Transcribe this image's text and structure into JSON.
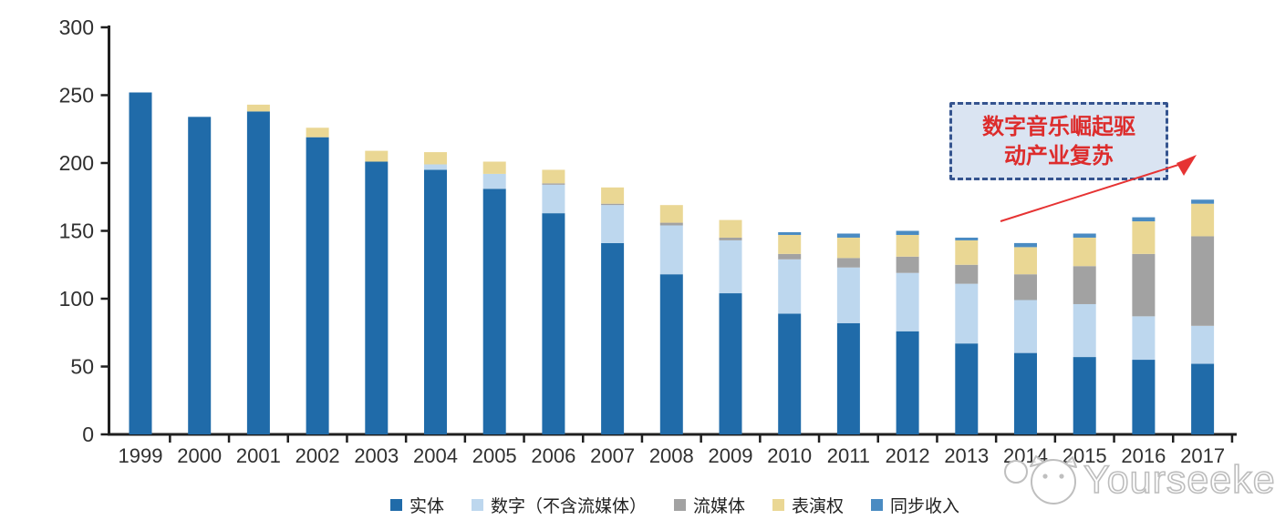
{
  "chart_data": {
    "type": "bar",
    "stacked": true,
    "title": "",
    "xlabel": "",
    "ylabel": "",
    "categories": [
      "1999",
      "2000",
      "2001",
      "2002",
      "2003",
      "2004",
      "2005",
      "2006",
      "2007",
      "2008",
      "2009",
      "2010",
      "2011",
      "2012",
      "2013",
      "2014",
      "2015",
      "2016",
      "2017"
    ],
    "series": [
      {
        "name": "实体",
        "color": "#206BA9",
        "values": [
          252,
          234,
          238,
          219,
          201,
          195,
          181,
          163,
          141,
          118,
          104,
          89,
          82,
          76,
          67,
          60,
          57,
          55,
          52
        ]
      },
      {
        "name": "数字（不含流媒体）",
        "color": "#BDD7EE",
        "values": [
          0,
          0,
          0,
          0,
          0,
          4,
          11,
          21,
          28,
          36,
          39,
          40,
          41,
          43,
          44,
          39,
          39,
          32,
          28
        ]
      },
      {
        "name": "流媒体",
        "color": "#A2A2A2",
        "values": [
          0,
          0,
          0,
          0,
          0,
          0,
          0,
          1,
          1,
          2,
          2,
          4,
          7,
          12,
          14,
          19,
          28,
          46,
          66
        ]
      },
      {
        "name": "表演权",
        "color": "#EAD794",
        "values": [
          0,
          0,
          5,
          7,
          8,
          9,
          9,
          10,
          12,
          13,
          13,
          14,
          15,
          16,
          18,
          20,
          21,
          24,
          24
        ]
      },
      {
        "name": "同步收入",
        "color": "#4A8BC2",
        "values": [
          0,
          0,
          0,
          0,
          0,
          0,
          0,
          0,
          0,
          0,
          0,
          2,
          3,
          3,
          2,
          3,
          3,
          3,
          3
        ]
      }
    ],
    "totals": [
      252,
      234,
      243,
      226,
      209,
      208,
      201,
      195,
      182,
      169,
      158,
      149,
      148,
      150,
      145,
      141,
      148,
      160,
      173
    ],
    "ylim": [
      0,
      300
    ],
    "yticks": [
      0,
      50,
      100,
      150,
      200,
      250,
      300
    ],
    "grid": false,
    "legend_position": "bottom"
  },
  "annotation": {
    "text": "数字音乐崛起驱动产业复苏",
    "line1": "数字音乐崛起驱",
    "line2": "动产业复苏",
    "border_color": "#35548F",
    "fill_color": "#DAE4F2",
    "text_color": "#DD2C2C",
    "arrow_color": "#E63333"
  },
  "watermark": {
    "text": "Yourseeker",
    "icon": "cat-logo-icon",
    "color": "#BDBDBD"
  },
  "axis": {
    "line_color": "#1F1F1F",
    "label_color": "#303030"
  }
}
